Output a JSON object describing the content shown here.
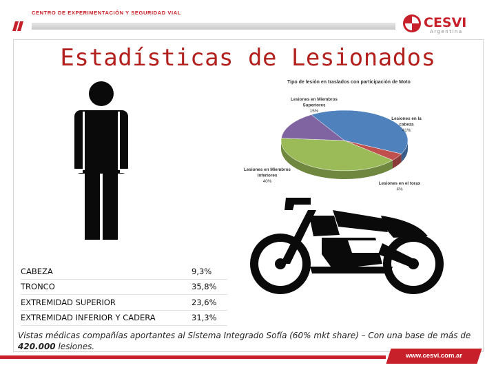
{
  "header": {
    "org_label": "CENTRO DE EXPERIMENTACIÓN Y SEGURIDAD VIAL",
    "logo_text": "CESVI",
    "logo_sub": "Argentina"
  },
  "title": "Estadísticas de Lesionados",
  "table": {
    "rows": [
      {
        "label": "CABEZA",
        "value": "9,3%"
      },
      {
        "label": "TRONCO",
        "value": "35,8%"
      },
      {
        "label": "EXTREMIDAD SUPERIOR",
        "value": "23,6%"
      },
      {
        "label": "EXTREMIDAD INFERIOR Y CADERA",
        "value": "31,3%"
      }
    ]
  },
  "footnote": {
    "text_before": "Vistas médicas compañías aportantes al Sistema Integrado Sofía (60% mkt share) – Con una base de más de ",
    "bold": "420.000",
    "text_after": " lesiones."
  },
  "footer": {
    "url": "www.cesvi.com.ar"
  },
  "colors": {
    "brand_red": "#c8202a",
    "title_red": "#b3211f"
  },
  "chart_data": {
    "type": "pie",
    "title": "Tipo de lesión en traslados con participación de Moto",
    "slices": [
      {
        "label": "Lesiones en la cabeza",
        "value": 41,
        "display": "41%",
        "color": "#4f81bd"
      },
      {
        "label": "Lesiones en el torax",
        "value": 4,
        "display": "4%",
        "color": "#c0504d"
      },
      {
        "label": "Lesiones en Miembros Inferiores",
        "value": 40,
        "display": "40%",
        "color": "#9bbb59"
      },
      {
        "label": "Lesiones en Miembros Superiores",
        "value": 15,
        "display": "15%",
        "color": "#8064a2"
      }
    ]
  }
}
